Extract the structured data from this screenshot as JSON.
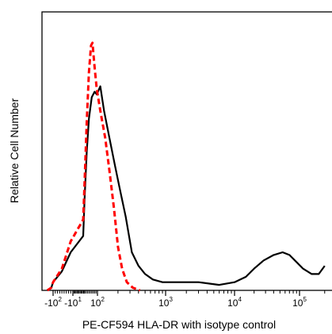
{
  "chart_data": {
    "type": "line",
    "title": "",
    "xlabel": "PE-CF594 HLA-DR with isotype control",
    "ylabel": "Relative Cell Number",
    "x_scale": "biexponential",
    "x_tick_labels": [
      {
        "base": "-10",
        "sup": "2",
        "value": -100
      },
      {
        "base": "-10",
        "sup": "1",
        "value": -10
      },
      {
        "base": "10",
        "sup": "2",
        "value": 100
      },
      {
        "base": "10",
        "sup": "3",
        "value": 1000
      },
      {
        "base": "10",
        "sup": "4",
        "value": 10000
      },
      {
        "base": "10",
        "sup": "5",
        "value": 100000
      }
    ],
    "xlim": [
      -250,
      250000
    ],
    "ylim": [
      0,
      100
    ],
    "grid": false,
    "legend": "none",
    "series": [
      {
        "color": "#000000",
        "style": "solid",
        "points": [
          [
            -200,
            0
          ],
          [
            -130,
            1
          ],
          [
            -100,
            3
          ],
          [
            -60,
            7
          ],
          [
            -20,
            14
          ],
          [
            0,
            20
          ],
          [
            10,
            34
          ],
          [
            25,
            51
          ],
          [
            40,
            63
          ],
          [
            60,
            71
          ],
          [
            80,
            73
          ],
          [
            95,
            72
          ],
          [
            110,
            75
          ],
          [
            125,
            66
          ],
          [
            150,
            56
          ],
          [
            180,
            46
          ],
          [
            210,
            38
          ],
          [
            260,
            27
          ],
          [
            320,
            14
          ],
          [
            400,
            9
          ],
          [
            500,
            6
          ],
          [
            650,
            4
          ],
          [
            900,
            3
          ],
          [
            1500,
            3
          ],
          [
            3000,
            3
          ],
          [
            6000,
            2
          ],
          [
            10000,
            3
          ],
          [
            15000,
            5
          ],
          [
            20000,
            8
          ],
          [
            28000,
            11
          ],
          [
            40000,
            13
          ],
          [
            55000,
            14
          ],
          [
            70000,
            13
          ],
          [
            85000,
            11
          ],
          [
            110000,
            8
          ],
          [
            140000,
            6
          ],
          [
            170000,
            6
          ],
          [
            200000,
            9
          ]
        ]
      },
      {
        "color": "#ff0000",
        "style": "dashed",
        "points": [
          [
            -200,
            0
          ],
          [
            -130,
            1
          ],
          [
            -100,
            3
          ],
          [
            -60,
            8
          ],
          [
            -20,
            18
          ],
          [
            0,
            26
          ],
          [
            10,
            40
          ],
          [
            25,
            62
          ],
          [
            40,
            80
          ],
          [
            55,
            90
          ],
          [
            65,
            91
          ],
          [
            80,
            82
          ],
          [
            95,
            74
          ],
          [
            110,
            66
          ],
          [
            130,
            56
          ],
          [
            150,
            44
          ],
          [
            175,
            30
          ],
          [
            200,
            16
          ],
          [
            230,
            8
          ],
          [
            270,
            3
          ],
          [
            330,
            1
          ],
          [
            420,
            0
          ]
        ]
      }
    ]
  }
}
